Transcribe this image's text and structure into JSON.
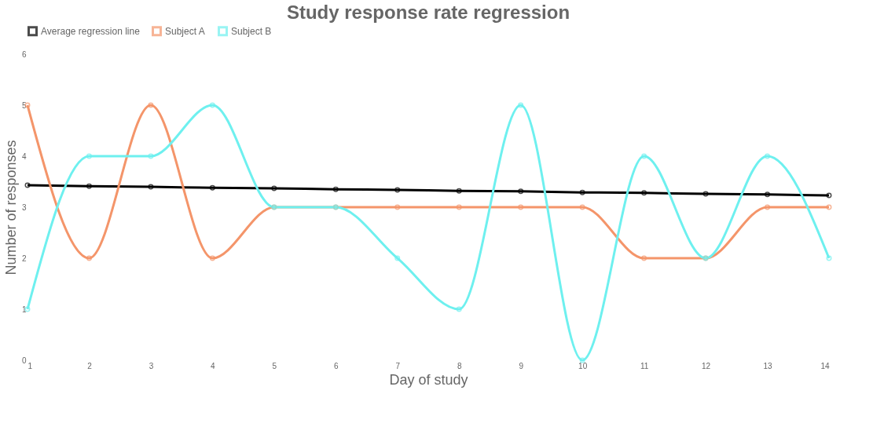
{
  "chart_data": {
    "type": "line",
    "title": "Study response rate regression",
    "xlabel": "Day of study",
    "ylabel": "Number of responses",
    "x": [
      1,
      2,
      3,
      4,
      5,
      6,
      7,
      8,
      9,
      10,
      11,
      12,
      13,
      14
    ],
    "series": [
      {
        "name": "Average regression line",
        "color": "#000000",
        "values": [
          3.43,
          3.41,
          3.4,
          3.38,
          3.37,
          3.35,
          3.34,
          3.32,
          3.31,
          3.29,
          3.28,
          3.26,
          3.25,
          3.23
        ]
      },
      {
        "name": "Subject A",
        "color": "#f4956a",
        "values": [
          5,
          2,
          5,
          2,
          3,
          3,
          3,
          3,
          3,
          3,
          2,
          2,
          3,
          3
        ]
      },
      {
        "name": "Subject B",
        "color": "#6ef0ef",
        "values": [
          1,
          4,
          4,
          5,
          3,
          3,
          2,
          1,
          5,
          0,
          4,
          2,
          4,
          2
        ]
      }
    ],
    "xlim": [
      1,
      14
    ],
    "xticks": [
      1,
      2,
      3,
      4,
      5,
      6,
      7,
      8,
      9,
      10,
      11,
      12,
      13,
      14
    ],
    "ylim": [
      0,
      6
    ],
    "yticks": [
      0,
      1,
      2,
      3,
      4,
      5,
      6
    ],
    "grid": false,
    "legend": "top",
    "marker": "circle",
    "line_style": "solid"
  }
}
